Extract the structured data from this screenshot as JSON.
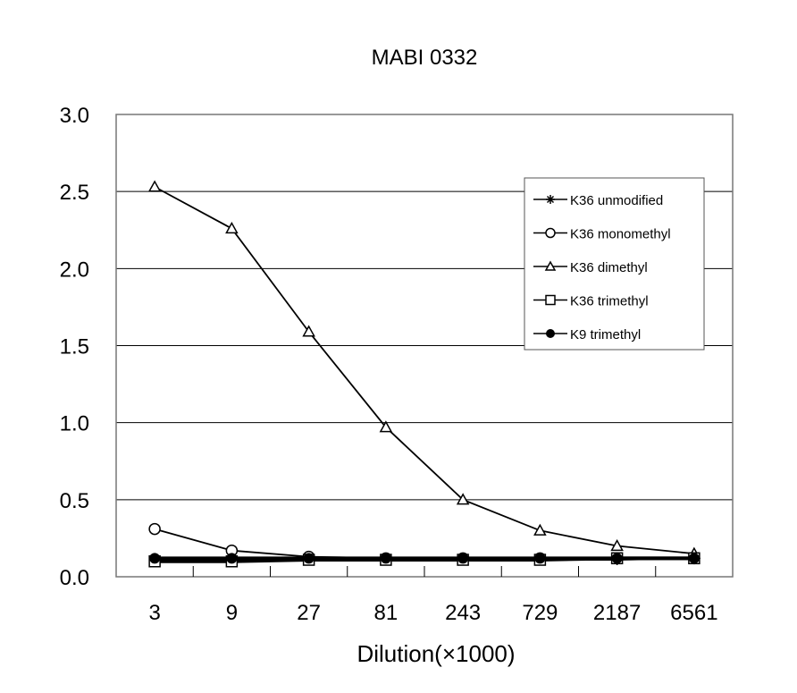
{
  "chart_data": {
    "type": "line",
    "title": "MABI 0332",
    "xlabel": "Dilution(×1000)",
    "ylabel": "",
    "categories": [
      "3",
      "9",
      "27",
      "81",
      "243",
      "729",
      "2187",
      "6561"
    ],
    "ylim": [
      0,
      3.0
    ],
    "yticks": [
      "0.0",
      "0.5",
      "1.0",
      "1.5",
      "2.0",
      "2.5",
      "3.0"
    ],
    "grid": true,
    "legend_position": "top-right",
    "series": [
      {
        "name": "K36 unmodified",
        "marker": "asterisk",
        "values": [
          0.11,
          0.11,
          0.11,
          0.11,
          0.11,
          0.11,
          0.11,
          0.12
        ]
      },
      {
        "name": "K36 monomethyl",
        "marker": "circle",
        "values": [
          0.31,
          0.17,
          0.13,
          0.12,
          0.12,
          0.12,
          0.12,
          0.12
        ]
      },
      {
        "name": "K36 dimethyl",
        "marker": "triangle",
        "values": [
          2.53,
          2.26,
          1.59,
          0.97,
          0.5,
          0.3,
          0.2,
          0.15
        ]
      },
      {
        "name": "K36 trimethyl",
        "marker": "square",
        "values": [
          0.1,
          0.1,
          0.11,
          0.11,
          0.11,
          0.11,
          0.12,
          0.12
        ]
      },
      {
        "name": "K9 trimethyl",
        "marker": "filled-circle",
        "values": [
          0.12,
          0.12,
          0.12,
          0.12,
          0.12,
          0.12,
          0.12,
          0.12
        ]
      }
    ]
  }
}
